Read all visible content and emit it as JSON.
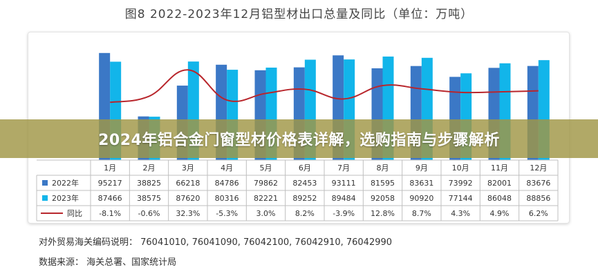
{
  "title": "图8  2022-2023年12月铝型材出口总量及同比（单位：万吨）",
  "banner": "2024年铝合金门窗型材价格表详解，选购指南与步骤解析",
  "footnote_codes": "对外贸易海关编码说明： 76041010, 76041090, 76042100, 76042910, 76042990",
  "footnote_source": "数据来源： 海关总署、国家统计局",
  "colors": {
    "y2022": "#3b78c6",
    "y2023": "#12b5ea",
    "yoy": "#b8262c"
  },
  "chart_data": {
    "type": "bar",
    "categories": [
      "1月",
      "2月",
      "3月",
      "4月",
      "5月",
      "6月",
      "7月",
      "8月",
      "9月",
      "10月",
      "11月",
      "12月"
    ],
    "series": [
      {
        "name": "2022年",
        "type": "bar",
        "values": [
          95217,
          38825,
          66218,
          84786,
          79862,
          82453,
          93111,
          81595,
          83631,
          73992,
          82001,
          83676
        ],
        "labels": [
          "95217",
          "38825",
          "66218",
          "84786",
          "79862",
          "82453",
          "93111",
          "81595",
          "83631",
          "73992",
          "82001",
          "83676"
        ]
      },
      {
        "name": "2023年",
        "type": "bar",
        "values": [
          87466,
          38575,
          87620,
          80316,
          82221,
          89252,
          89484,
          92058,
          90920,
          77144,
          86048,
          88856
        ],
        "labels": [
          "87466",
          "38575",
          "87620",
          "80316",
          "82221",
          "89252",
          "89484",
          "92058",
          "90920",
          "77144",
          "86048",
          "88856"
        ]
      },
      {
        "name": "同比",
        "type": "line",
        "values": [
          -8.1,
          -0.6,
          32.3,
          -5.3,
          3.0,
          8.2,
          -3.9,
          12.8,
          8.7,
          4.3,
          4.9,
          6.2
        ],
        "labels": [
          "-8.1%",
          "-0.6%",
          "32.3%",
          "-5.3%",
          "3.0%",
          "8.2%",
          "-3.9%",
          "12.8%",
          "8.7%",
          "4.3%",
          "4.9%",
          "6.2%"
        ]
      }
    ],
    "bar_ylim": [
      0,
      100000
    ],
    "line_ylim": [
      -80,
      60
    ],
    "legend": "bottom-table"
  }
}
